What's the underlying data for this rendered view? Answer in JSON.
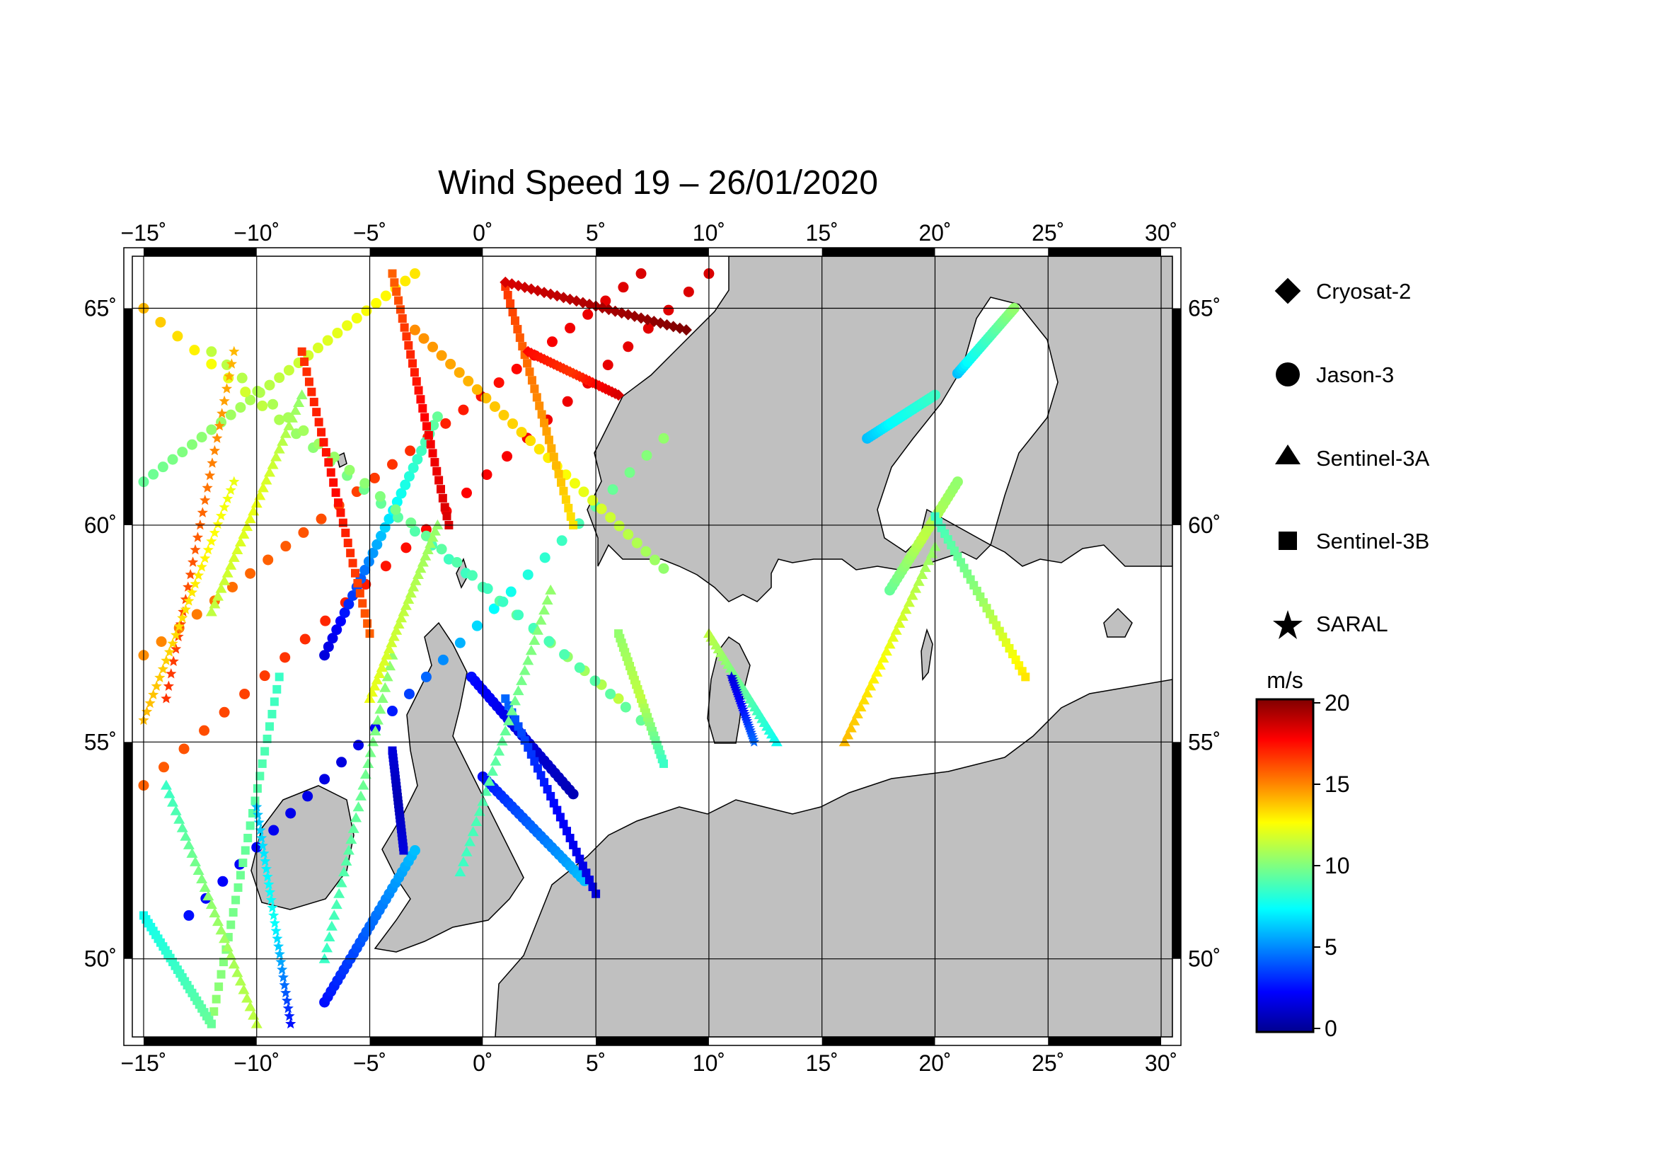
{
  "title": "Wind Speed 19 – 26/01/2020",
  "longitude_ticks": [
    {
      "value": -15,
      "label": "−15˚"
    },
    {
      "value": -10,
      "label": "−10˚"
    },
    {
      "value": -5,
      "label": "−5˚"
    },
    {
      "value": 0,
      "label": "0˚"
    },
    {
      "value": 5,
      "label": "5˚"
    },
    {
      "value": 10,
      "label": "10˚"
    },
    {
      "value": 15,
      "label": "15˚"
    },
    {
      "value": 20,
      "label": "20˚"
    },
    {
      "value": 25,
      "label": "25˚"
    },
    {
      "value": 30,
      "label": "30˚"
    }
  ],
  "latitude_ticks": [
    {
      "value": 50,
      "label": "50˚"
    },
    {
      "value": 55,
      "label": "55˚"
    },
    {
      "value": 60,
      "label": "60˚"
    },
    {
      "value": 65,
      "label": "65˚"
    }
  ],
  "map_extent": {
    "lon_min": -15.5,
    "lon_max": 30.5,
    "lat_min": 48.2,
    "lat_max": 66.2
  },
  "legend": {
    "satellites": [
      {
        "name": "Cryosat-2",
        "symbol": "diamond-icon"
      },
      {
        "name": "Jason-3",
        "symbol": "circle-icon"
      },
      {
        "name": "Sentinel-3A",
        "symbol": "triangle-icon"
      },
      {
        "name": "Sentinel-3B",
        "symbol": "square-icon"
      },
      {
        "name": "SARAL",
        "symbol": "star-icon"
      }
    ]
  },
  "colorbar": {
    "unit": "m/s",
    "min": 0,
    "max": 20,
    "ticks": [
      {
        "value": 0,
        "label": "0"
      },
      {
        "value": 5,
        "label": "5"
      },
      {
        "value": 10,
        "label": "10"
      },
      {
        "value": 15,
        "label": "15"
      },
      {
        "value": 20,
        "label": "20"
      }
    ],
    "colormap": [
      "#00008f",
      "#0000ff",
      "#00ffff",
      "#80ff80",
      "#ffff00",
      "#ff8000",
      "#ff0000",
      "#800000"
    ]
  },
  "colors": {
    "land": "#c0c0c0",
    "sea": "#ffffff",
    "coast": "#000000"
  },
  "tracks": [
    {
      "sat": "jason3",
      "from": [
        -15,
        61.0
      ],
      "to": [
        -3,
        65.8
      ],
      "ws": [
        8,
        10,
        12
      ]
    },
    {
      "sat": "jason3",
      "from": [
        -15,
        57.0
      ],
      "to": [
        7,
        65.8
      ],
      "ws": [
        14,
        16,
        18
      ]
    },
    {
      "sat": "jason3",
      "from": [
        -15,
        54.0
      ],
      "to": [
        10,
        65.8
      ],
      "ws": [
        15,
        17,
        18
      ]
    },
    {
      "sat": "jason3",
      "from": [
        -13,
        51.0
      ],
      "to": [
        8,
        62.0
      ],
      "ws": [
        3,
        2,
        6,
        9
      ]
    },
    {
      "sat": "jason3",
      "from": [
        -7,
        57.0
      ],
      "to": [
        -2,
        62.5
      ],
      "ws": [
        2,
        5,
        8
      ]
    },
    {
      "sat": "jason3",
      "from": [
        -15,
        65.0
      ],
      "to": [
        6,
        56.0
      ],
      "ws": [
        13,
        9,
        7,
        10
      ]
    },
    {
      "sat": "jason3",
      "from": [
        -12,
        64.0
      ],
      "to": [
        7,
        55.5
      ],
      "ws": [
        10,
        9,
        7,
        8
      ]
    },
    {
      "sat": "jason3",
      "from": [
        -3,
        64.5
      ],
      "to": [
        8,
        59.0
      ],
      "ws": [
        14,
        12,
        9
      ]
    },
    {
      "sat": "jason3",
      "from": [
        -0.5,
        56.5
      ],
      "to": [
        4,
        53.8
      ],
      "ws": [
        3,
        2,
        1
      ]
    },
    {
      "sat": "jason3",
      "from": [
        0,
        54.2
      ],
      "to": [
        4.5,
        51.8
      ],
      "ws": [
        3,
        4,
        5
      ]
    },
    {
      "sat": "jason3",
      "from": [
        -7,
        49.0
      ],
      "to": [
        -3,
        52.5
      ],
      "ws": [
        3,
        4,
        5
      ]
    },
    {
      "sat": "jason3",
      "from": [
        17,
        62.0
      ],
      "to": [
        20,
        63.0
      ],
      "ws": [
        5,
        6,
        7
      ]
    },
    {
      "sat": "jason3",
      "from": [
        21,
        63.5
      ],
      "to": [
        23.5,
        65.0
      ],
      "ws": [
        5,
        7,
        9
      ]
    },
    {
      "sat": "jason3",
      "from": [
        18,
        58.5
      ],
      "to": [
        21,
        61.0
      ],
      "ws": [
        8,
        10,
        9
      ]
    },
    {
      "sat": "sentinel3b",
      "from": [
        -8,
        64.0
      ],
      "to": [
        -5,
        57.5
      ],
      "ws": [
        16,
        17,
        15
      ]
    },
    {
      "sat": "sentinel3b",
      "from": [
        -4,
        65.8
      ],
      "to": [
        -1.5,
        60.0
      ],
      "ws": [
        15,
        17,
        18
      ]
    },
    {
      "sat": "sentinel3b",
      "from": [
        1,
        65.5
      ],
      "to": [
        4,
        60.0
      ],
      "ws": [
        16,
        14,
        12
      ]
    },
    {
      "sat": "sentinel3b",
      "from": [
        -9,
        56.5
      ],
      "to": [
        -12,
        48.5
      ],
      "ws": [
        7,
        8,
        9
      ]
    },
    {
      "sat": "sentinel3b",
      "from": [
        1,
        56.0
      ],
      "to": [
        5,
        51.5
      ],
      "ws": [
        4,
        3,
        2
      ]
    },
    {
      "sat": "sentinel3b",
      "from": [
        -4,
        54.8
      ],
      "to": [
        -3.5,
        52.5
      ],
      "ws": [
        2,
        1,
        2
      ]
    },
    {
      "sat": "sentinel3b",
      "from": [
        6,
        57.5
      ],
      "to": [
        8,
        54.5
      ],
      "ws": [
        9,
        10,
        7
      ]
    },
    {
      "sat": "sentinel3b",
      "from": [
        20,
        60.2
      ],
      "to": [
        24,
        56.5
      ],
      "ws": [
        7,
        9,
        12
      ]
    },
    {
      "sat": "sentinel3b",
      "from": [
        -15,
        51.0
      ],
      "to": [
        -12,
        48.5
      ],
      "ws": [
        6,
        7,
        8
      ]
    },
    {
      "sat": "sentinel3a",
      "from": [
        -14,
        54.0
      ],
      "to": [
        -10,
        48.5
      ],
      "ws": [
        7,
        9,
        10
      ]
    },
    {
      "sat": "sentinel3a",
      "from": [
        -12,
        58.0
      ],
      "to": [
        -8,
        63.0
      ],
      "ws": [
        10,
        11,
        9
      ]
    },
    {
      "sat": "sentinel3a",
      "from": [
        -1,
        52.0
      ],
      "to": [
        3,
        58.5
      ],
      "ws": [
        7,
        8,
        9
      ]
    },
    {
      "sat": "sentinel3a",
      "from": [
        10,
        57.5
      ],
      "to": [
        13,
        55.0
      ],
      "ws": [
        10,
        8,
        6
      ]
    },
    {
      "sat": "sentinel3a",
      "from": [
        16,
        55.0
      ],
      "to": [
        20,
        59.5
      ],
      "ws": [
        13,
        11,
        9
      ]
    },
    {
      "sat": "sentinel3a",
      "from": [
        -4,
        57.0
      ],
      "to": [
        -7,
        50.0
      ],
      "ws": [
        9,
        8,
        7
      ]
    },
    {
      "sat": "sentinel3a",
      "from": [
        -2,
        60.0
      ],
      "to": [
        -5,
        56.0
      ],
      "ws": [
        9,
        10,
        11
      ]
    },
    {
      "sat": "saral",
      "from": [
        -14,
        56.0
      ],
      "to": [
        -11,
        64.0
      ],
      "ws": [
        16,
        15,
        13
      ]
    },
    {
      "sat": "saral",
      "from": [
        -10,
        53.5
      ],
      "to": [
        -8.5,
        48.5
      ],
      "ws": [
        5,
        6,
        3
      ]
    },
    {
      "sat": "saral",
      "from": [
        -15,
        55.5
      ],
      "to": [
        -11,
        61.0
      ],
      "ws": [
        13,
        12,
        11
      ]
    },
    {
      "sat": "saral",
      "from": [
        11,
        56.5
      ],
      "to": [
        12,
        55.0
      ],
      "ws": [
        2,
        3,
        4
      ]
    },
    {
      "sat": "cryosat2",
      "from": [
        1,
        65.6
      ],
      "to": [
        9,
        64.5
      ],
      "ws": [
        18,
        19,
        20
      ]
    },
    {
      "sat": "cryosat2",
      "from": [
        2,
        64.0
      ],
      "to": [
        6,
        63.0
      ],
      "ws": [
        17,
        16,
        18
      ]
    }
  ]
}
